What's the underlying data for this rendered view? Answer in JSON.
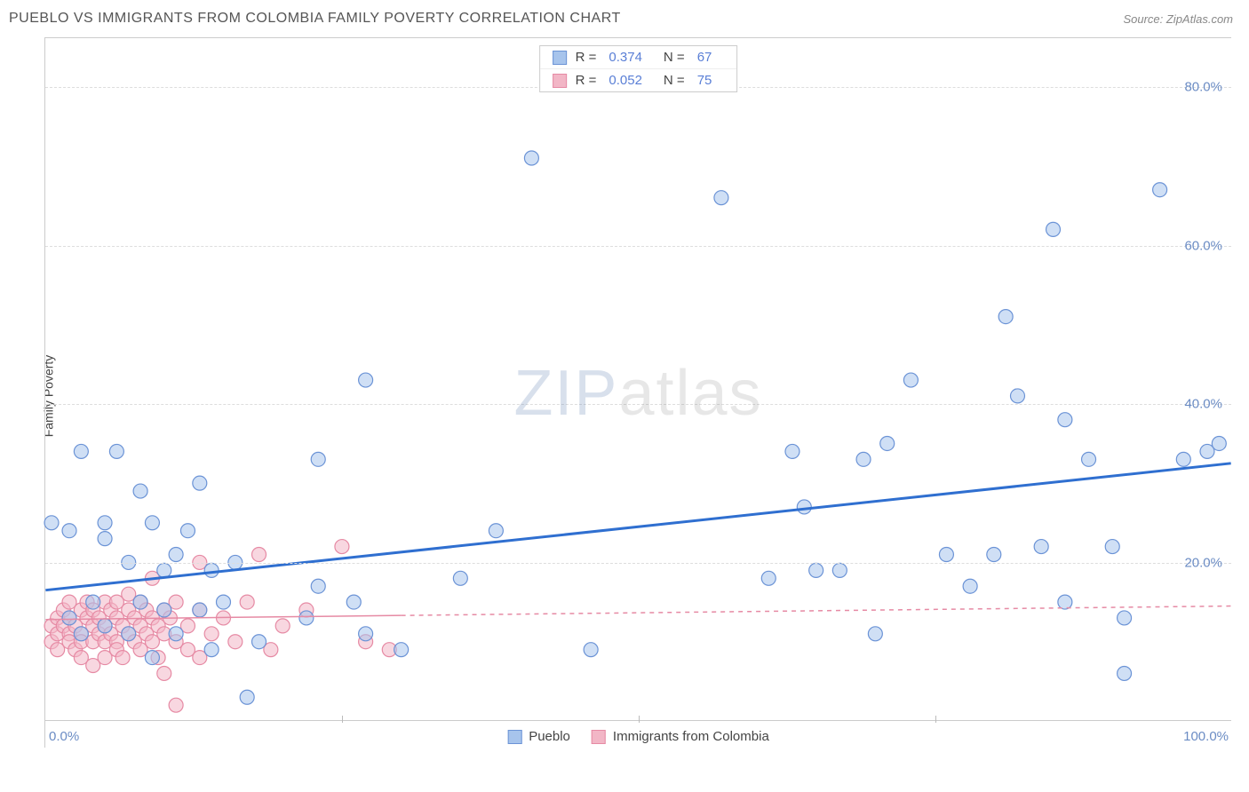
{
  "header": {
    "title": "PUEBLO VS IMMIGRANTS FROM COLOMBIA FAMILY POVERTY CORRELATION CHART",
    "source": "Source: ZipAtlas.com"
  },
  "chart": {
    "type": "scatter",
    "ylabel": "Family Poverty",
    "xlim": [
      0,
      100
    ],
    "ylim": [
      0,
      85
    ],
    "ytick_values": [
      20,
      40,
      60,
      80
    ],
    "ytick_labels": [
      "20.0%",
      "40.0%",
      "60.0%",
      "80.0%"
    ],
    "xtick_values": [
      0,
      25,
      50,
      75,
      100
    ],
    "xtick_edge_labels": {
      "left": "0.0%",
      "right": "100.0%"
    },
    "background_color": "#ffffff",
    "grid_color": "#dddddd",
    "marker_radius": 8,
    "marker_stroke_width": 1.2,
    "marker_opacity": 0.55,
    "watermark": {
      "part1": "ZIP",
      "part2": "atlas"
    }
  },
  "series": {
    "pueblo": {
      "label": "Pueblo",
      "fill": "#a7c4ec",
      "stroke": "#6b93d6",
      "R": "0.374",
      "N": "67",
      "trend": {
        "x1": 0,
        "y1": 16.5,
        "x2": 100,
        "y2": 32.5,
        "color": "#2f6fd0",
        "width": 3
      },
      "points": [
        [
          0.5,
          25
        ],
        [
          2,
          24
        ],
        [
          2,
          13
        ],
        [
          3,
          11
        ],
        [
          3,
          34
        ],
        [
          4,
          15
        ],
        [
          5,
          25
        ],
        [
          5,
          12
        ],
        [
          5,
          23
        ],
        [
          6,
          34
        ],
        [
          7,
          20
        ],
        [
          7,
          11
        ],
        [
          8,
          15
        ],
        [
          8,
          29
        ],
        [
          9,
          25
        ],
        [
          9,
          8
        ],
        [
          10,
          19
        ],
        [
          10,
          14
        ],
        [
          11,
          21
        ],
        [
          11,
          11
        ],
        [
          12,
          24
        ],
        [
          13,
          14
        ],
        [
          13,
          30
        ],
        [
          14,
          19
        ],
        [
          14,
          9
        ],
        [
          15,
          15
        ],
        [
          16,
          20
        ],
        [
          17,
          3
        ],
        [
          18,
          10
        ],
        [
          22,
          13
        ],
        [
          23,
          33
        ],
        [
          23,
          17
        ],
        [
          26,
          15
        ],
        [
          27,
          43
        ],
        [
          27,
          11
        ],
        [
          30,
          9
        ],
        [
          35,
          18
        ],
        [
          38,
          24
        ],
        [
          41,
          71
        ],
        [
          46,
          9
        ],
        [
          57,
          66
        ],
        [
          61,
          18
        ],
        [
          63,
          34
        ],
        [
          64,
          27
        ],
        [
          65,
          19
        ],
        [
          67,
          19
        ],
        [
          69,
          33
        ],
        [
          70,
          11
        ],
        [
          71,
          35
        ],
        [
          73,
          43
        ],
        [
          76,
          21
        ],
        [
          78,
          17
        ],
        [
          80,
          21
        ],
        [
          81,
          51
        ],
        [
          82,
          41
        ],
        [
          84,
          22
        ],
        [
          85,
          62
        ],
        [
          86,
          38
        ],
        [
          86,
          15
        ],
        [
          88,
          33
        ],
        [
          90,
          22
        ],
        [
          91,
          6
        ],
        [
          91,
          13
        ],
        [
          94,
          67
        ],
        [
          96,
          33
        ],
        [
          98,
          34
        ],
        [
          99,
          35
        ]
      ]
    },
    "colombia": {
      "label": "Immigrants from Colombia",
      "fill": "#f2b6c6",
      "stroke": "#e68aa4",
      "R": "0.052",
      "N": "75",
      "trend": {
        "x1": 0,
        "y1": 12.8,
        "x2": 100,
        "y2": 14.5,
        "color": "#e68aa4",
        "width": 1.5,
        "solid_until": 30
      },
      "points": [
        [
          0.5,
          10
        ],
        [
          0.5,
          12
        ],
        [
          1,
          11
        ],
        [
          1,
          13
        ],
        [
          1,
          9
        ],
        [
          1.5,
          14
        ],
        [
          1.5,
          12
        ],
        [
          2,
          11
        ],
        [
          2,
          10
        ],
        [
          2,
          15
        ],
        [
          2,
          13
        ],
        [
          2.5,
          12
        ],
        [
          2.5,
          9
        ],
        [
          3,
          14
        ],
        [
          3,
          11
        ],
        [
          3,
          10
        ],
        [
          3,
          8
        ],
        [
          3.5,
          13
        ],
        [
          3.5,
          15
        ],
        [
          4,
          12
        ],
        [
          4,
          10
        ],
        [
          4,
          14
        ],
        [
          4,
          7
        ],
        [
          4.5,
          11
        ],
        [
          4.5,
          13
        ],
        [
          5,
          12
        ],
        [
          5,
          15
        ],
        [
          5,
          10
        ],
        [
          5,
          8
        ],
        [
          5.5,
          14
        ],
        [
          5.5,
          11
        ],
        [
          6,
          13
        ],
        [
          6,
          10
        ],
        [
          6,
          15
        ],
        [
          6,
          9
        ],
        [
          6.5,
          12
        ],
        [
          6.5,
          8
        ],
        [
          7,
          14
        ],
        [
          7,
          11
        ],
        [
          7,
          16
        ],
        [
          7.5,
          13
        ],
        [
          7.5,
          10
        ],
        [
          8,
          12
        ],
        [
          8,
          15
        ],
        [
          8,
          9
        ],
        [
          8.5,
          11
        ],
        [
          8.5,
          14
        ],
        [
          9,
          13
        ],
        [
          9,
          10
        ],
        [
          9,
          18
        ],
        [
          9.5,
          12
        ],
        [
          9.5,
          8
        ],
        [
          10,
          14
        ],
        [
          10,
          11
        ],
        [
          10,
          6
        ],
        [
          10.5,
          13
        ],
        [
          11,
          10
        ],
        [
          11,
          2
        ],
        [
          11,
          15
        ],
        [
          12,
          12
        ],
        [
          12,
          9
        ],
        [
          13,
          14
        ],
        [
          13,
          20
        ],
        [
          13,
          8
        ],
        [
          14,
          11
        ],
        [
          15,
          13
        ],
        [
          16,
          10
        ],
        [
          17,
          15
        ],
        [
          18,
          21
        ],
        [
          19,
          9
        ],
        [
          20,
          12
        ],
        [
          22,
          14
        ],
        [
          25,
          22
        ],
        [
          27,
          10
        ],
        [
          29,
          9
        ]
      ]
    }
  },
  "legend_labels": {
    "R": "R  =",
    "N": "N  ="
  }
}
